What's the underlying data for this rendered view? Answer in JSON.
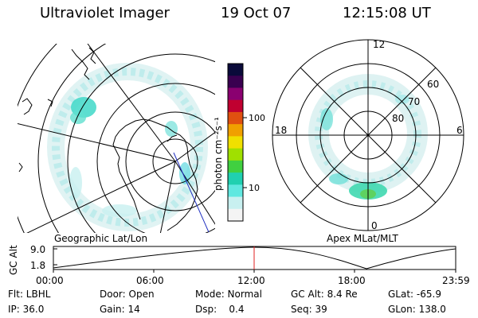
{
  "header": {
    "instrument": "Ultraviolet Imager",
    "date": "19 Oct 07",
    "time": "12:15:08 UT"
  },
  "left_panel": {
    "caption": "Geographic Lat/Lon"
  },
  "right_panel": {
    "caption": "Apex MLat/MLT",
    "mlt_labels": {
      "top": "12",
      "left": "18",
      "right": "6",
      "bottom": "0"
    },
    "lat_labels": [
      "60",
      "70",
      "80"
    ]
  },
  "colorbar": {
    "unit_label": "photon cm⁻²s⁻¹",
    "ticks": [
      "100",
      "10"
    ],
    "colors": [
      "#0a0a3a",
      "#3a0050",
      "#8a0070",
      "#c00030",
      "#e05010",
      "#f0a000",
      "#f0e000",
      "#a0e000",
      "#40d040",
      "#20d0b0",
      "#60e8e0",
      "#c8f0f0",
      "#f4f4f4"
    ]
  },
  "altitude_plot": {
    "ylabel": "GC Alt",
    "ytick_top": "9.0",
    "ytick_bottom": "1.8",
    "xticks": [
      "00:00",
      "06:00",
      "12:00",
      "18:00",
      "23:59"
    ],
    "marker_color": "#e02020"
  },
  "status": {
    "row1": [
      {
        "label": "Flt: LBHL"
      },
      {
        "label": "Door: Open"
      },
      {
        "label": "Mode: Normal"
      },
      {
        "label": "GC Alt: 8.4 Re"
      },
      {
        "label": "GLat: -65.9"
      }
    ],
    "row2": [
      {
        "label": "IP: 36.0"
      },
      {
        "label": "Gain: 14"
      },
      {
        "label": "Dsp:    0.4"
      },
      {
        "label": "Seq: 39"
      },
      {
        "label": "GLon: 138.0"
      }
    ]
  },
  "aurora_color": "#40d8c8"
}
